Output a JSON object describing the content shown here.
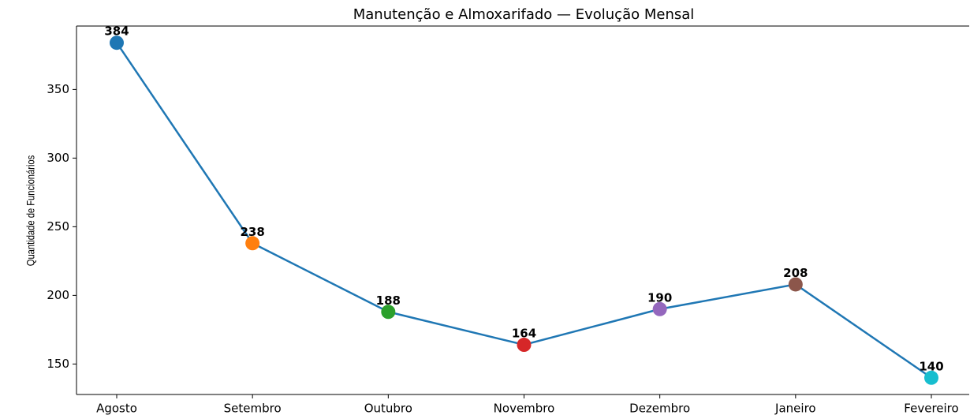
{
  "chart_data": {
    "type": "line",
    "title": "Manutenção e Almoxarifado — Evolução Mensal",
    "y_label": "Quantidade de Funcionários",
    "categories": [
      "Agosto",
      "Setembro",
      "Outubro",
      "Novembro",
      "Dezembro",
      "Janeiro",
      "Fevereiro"
    ],
    "values": [
      384,
      238,
      188,
      164,
      190,
      208,
      140
    ],
    "color": "#1f77b4",
    "marker_colors": [
      "#1f77b4",
      "#ff7f0e",
      "#2ca02c",
      "#d62728",
      "#9467bd",
      "#8c564b",
      "#17becf"
    ],
    "ylim": [
      127.8,
      396.2
    ],
    "yticks": [
      150,
      200,
      250,
      300,
      350
    ],
    "grid": false
  }
}
